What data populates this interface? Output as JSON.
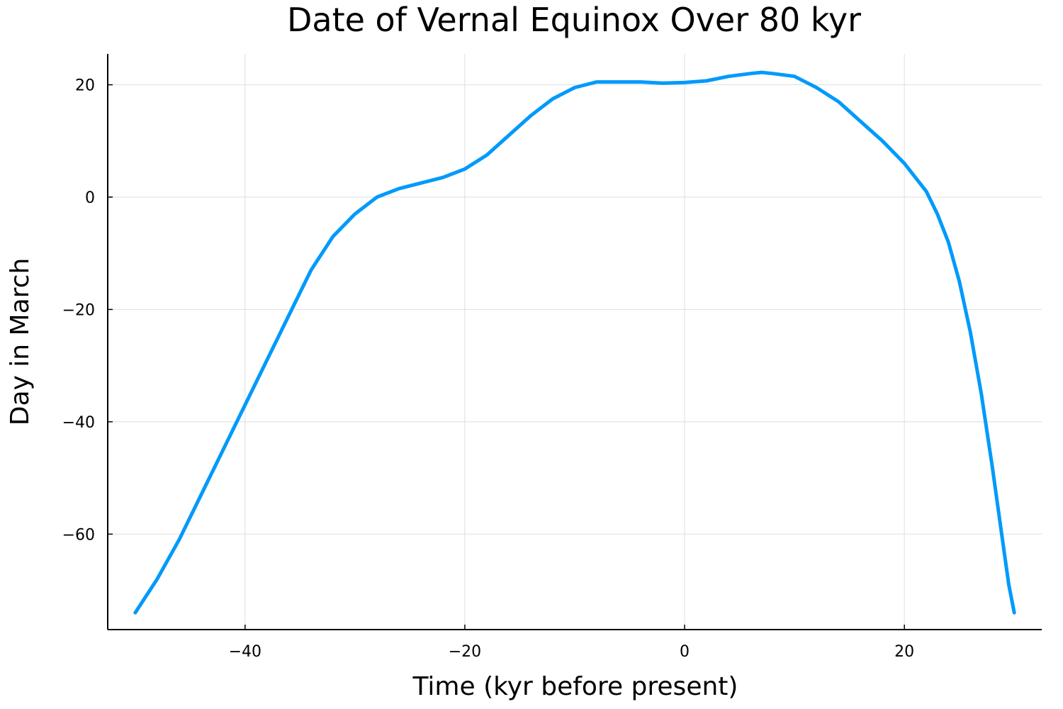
{
  "chart_data": {
    "type": "line",
    "title": "Date of Vernal Equinox Over 80 kyr",
    "xlabel": "Time (kyr before present)",
    "ylabel": "Day in March",
    "xlim": [
      -52.5,
      32.5
    ],
    "ylim": [
      -77,
      25.5
    ],
    "xticks": [
      -40,
      -20,
      0,
      20
    ],
    "yticks": [
      20,
      0,
      -20,
      -40,
      -60
    ],
    "xtick_labels": [
      "−40",
      "−20",
      "0",
      "20"
    ],
    "ytick_labels": [
      "20",
      "0",
      "−20",
      "−40",
      "−60"
    ],
    "grid": true,
    "legend": "none",
    "series_color": "#009AFA",
    "series": [
      {
        "x": [
          -50,
          -48,
          -46,
          -44,
          -42,
          -40,
          -38,
          -36,
          -34,
          -32,
          -30,
          -28,
          -26,
          -24,
          -22,
          -20,
          -18,
          -16,
          -14,
          -12,
          -10,
          -8,
          -6,
          -4,
          -2,
          0,
          2,
          4,
          6,
          7,
          8,
          10,
          12,
          14,
          16,
          18,
          20,
          22,
          23,
          24,
          25,
          26,
          27,
          28,
          29,
          29.5,
          30
        ],
        "y": [
          -74,
          -68,
          -61,
          -53,
          -45,
          -37,
          -29,
          -21,
          -13,
          -7,
          -3,
          0,
          1.5,
          2.5,
          3.5,
          5,
          7.5,
          11,
          14.5,
          17.5,
          19.5,
          20.5,
          20.5,
          20.5,
          20.3,
          20.4,
          20.7,
          21.5,
          22,
          22.2,
          22,
          21.5,
          19.5,
          17,
          13.5,
          10,
          6,
          1,
          -3,
          -8,
          -15,
          -24,
          -35,
          -48,
          -62,
          -69,
          -74
        ]
      }
    ]
  }
}
